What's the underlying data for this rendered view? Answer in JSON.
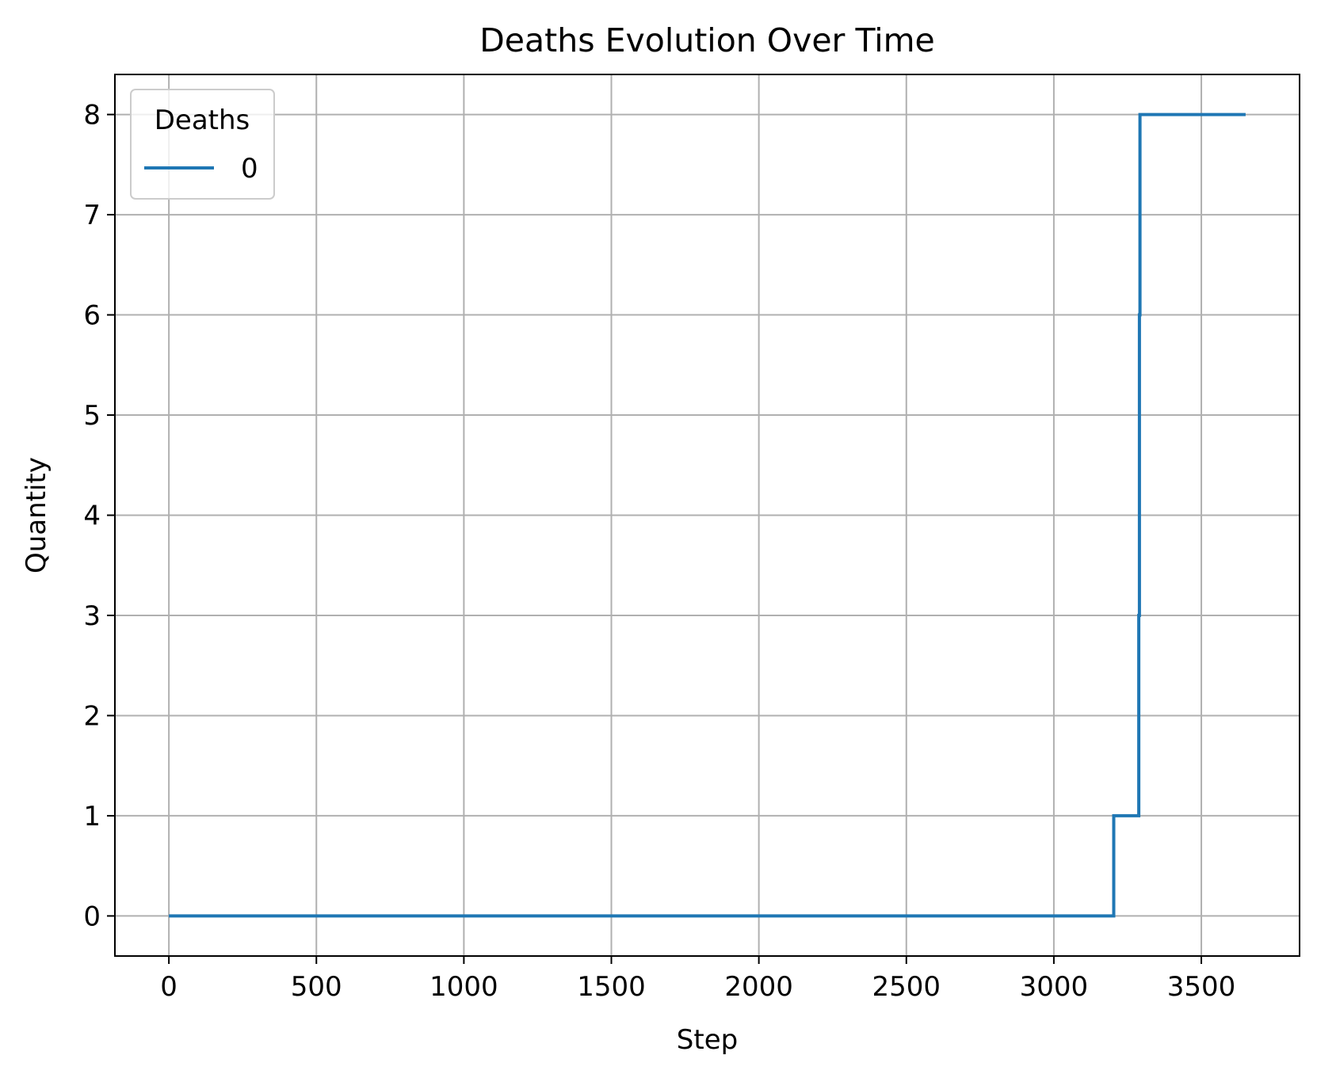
{
  "chart_data": {
    "type": "line",
    "title": "Deaths Evolution Over Time",
    "xlabel": "Step",
    "ylabel": "Quantity",
    "xlim": [
      -183,
      3833
    ],
    "ylim": [
      -0.4,
      8.4
    ],
    "xticks": [
      0,
      500,
      1000,
      1500,
      2000,
      2500,
      3000,
      3500
    ],
    "yticks": [
      0,
      1,
      2,
      3,
      4,
      5,
      6,
      7,
      8
    ],
    "grid": true,
    "legend": {
      "title": "Deaths",
      "placement": "top-left"
    },
    "series": [
      {
        "name": "0",
        "color": "#1f77b4",
        "x": [
          0,
          3203,
          3203,
          3288,
          3288,
          3290,
          3290,
          3292,
          3292,
          3650
        ],
        "y": [
          0,
          0,
          1,
          1,
          3,
          3,
          6,
          6,
          8,
          8
        ]
      }
    ]
  }
}
